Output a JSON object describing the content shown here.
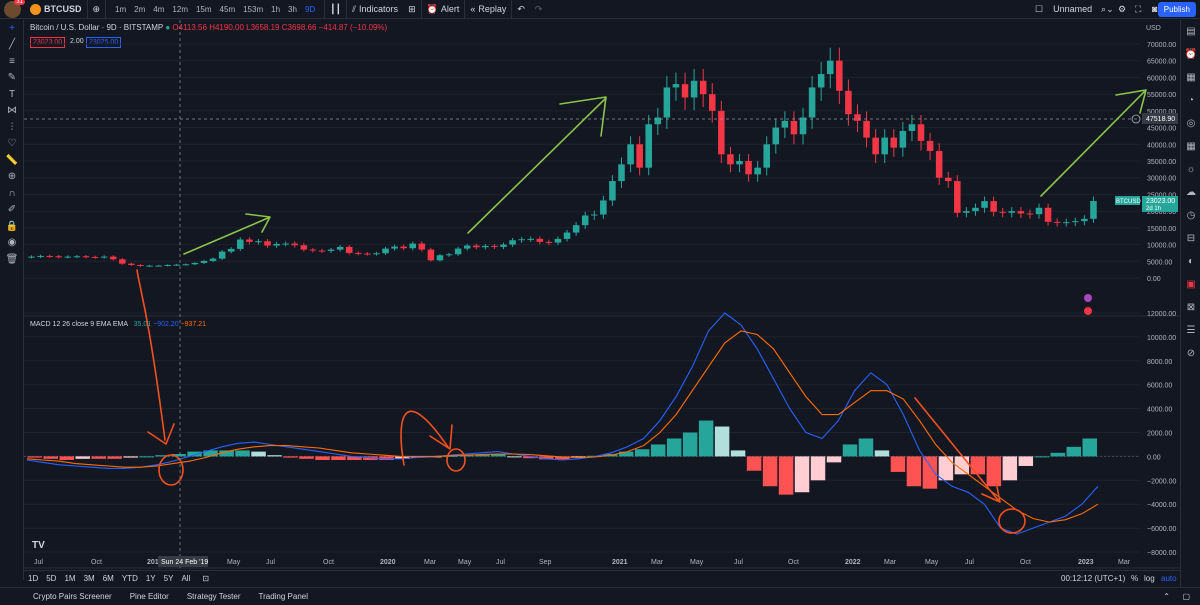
{
  "topbar": {
    "notif_count": "31",
    "symbol": "BTCUSD",
    "timeframes": [
      "1m",
      "2m",
      "4m",
      "12m",
      "15m",
      "45m",
      "153m",
      "1h",
      "3h",
      "9D"
    ],
    "active_timeframe": "9D",
    "indicators_label": "Indicators",
    "alert_label": "Alert",
    "replay_label": "Replay",
    "layout_name": "Unnamed",
    "publish_label": "Publish"
  },
  "legend": {
    "title": "Bitcoin / U.S. Dollar · 9D · BITSTAMP",
    "ohlc": "O",
    "o": "4113.56",
    "h_label": "H",
    "h": "4190.00",
    "l_label": "L",
    "l": "3658.19",
    "c_label": "C",
    "c": "3698.66",
    "chg": "−414.87 (−10.09%)",
    "bid": "23023.00",
    "spread": "2.00",
    "ask": "23025.00"
  },
  "price_axis": {
    "currency": "USD",
    "ticks": [
      "70000.00",
      "65000.00",
      "60000.00",
      "55000.00",
      "50000.00",
      "45000.00",
      "40000.00",
      "35000.00",
      "30000.00",
      "25000.00",
      "20000.00",
      "15000.00",
      "10000.00",
      "5000.00",
      "0.00"
    ],
    "crosshair_label": "47518.90",
    "last_symbol": "BTCUSD",
    "last_price": "23023.00",
    "countdown": "2d 1h"
  },
  "macd": {
    "legend": "MACD 12 26 close 9 EMA EMA",
    "hist": "35.01",
    "macd_val": "−902.20",
    "signal_val": "−937.21",
    "ticks": [
      "12000.00",
      "10000.00",
      "8000.00",
      "6000.00",
      "4000.00",
      "2000.00",
      "0.00",
      "−2000.00",
      "−4000.00",
      "−6000.00",
      "−8000.00"
    ]
  },
  "time_axis": {
    "ticks": [
      "Jul",
      "Oct",
      "2019",
      "May",
      "Jul",
      "Oct",
      "2020",
      "Mar",
      "May",
      "Jul",
      "Sep",
      "2021",
      "Mar",
      "May",
      "Jul",
      "Oct",
      "2022",
      "Mar",
      "May",
      "Jul",
      "Oct",
      "2023",
      "Mar"
    ],
    "crosshair_date": "Sun 24 Feb '19"
  },
  "bottombar": {
    "ranges": [
      "1D",
      "5D",
      "1M",
      "3M",
      "6M",
      "YTD",
      "1Y",
      "5Y",
      "All"
    ],
    "clock": "00:12:12 (UTC+1)",
    "pct": "%",
    "log": "log",
    "auto": "auto"
  },
  "footer": {
    "tabs": [
      "Crypto Pairs Screener",
      "Pine Editor",
      "Strategy Tester",
      "Trading Panel"
    ]
  },
  "colors": {
    "up": "#26a69a",
    "down": "#f23645",
    "macd_line": "#2962ff",
    "signal_line": "#ff6d00",
    "annotation_green": "#8bc34a",
    "annotation_red": "#f4511e",
    "background": "#131722"
  },
  "chart_data": [
    {
      "type": "candlestick",
      "title": "Bitcoin / U.S. Dollar · 9D · BITSTAMP",
      "ylim": [
        0,
        72000
      ],
      "close_series": [
        6400,
        6600,
        6500,
        6300,
        6400,
        6500,
        6300,
        6200,
        6400,
        5600,
        4300,
        3900,
        3600,
        3700,
        3700,
        3900,
        4000,
        4100,
        4500,
        5100,
        5800,
        7900,
        8700,
        11500,
        10800,
        11000,
        9700,
        10200,
        10300,
        9800,
        8500,
        8200,
        8100,
        8500,
        9300,
        7500,
        7300,
        7200,
        7400,
        8800,
        9400,
        8900,
        10300,
        8500,
        5300,
        6800,
        7100,
        8800,
        9700,
        9200,
        9600,
        9300,
        10000,
        11300,
        11600,
        11700,
        10800,
        10600,
        11700,
        13600,
        15800,
        18700,
        19000,
        23200,
        29000,
        34000,
        40000,
        33000,
        46000,
        48000,
        57000,
        58000,
        54000,
        59000,
        55000,
        50000,
        37000,
        34000,
        35000,
        31000,
        33000,
        40000,
        45000,
        47000,
        43000,
        48000,
        57000,
        61000,
        65000,
        56000,
        49000,
        47000,
        42000,
        37000,
        42000,
        39000,
        44000,
        46000,
        41000,
        38000,
        30000,
        29000,
        19500,
        20000,
        21000,
        23000,
        19800,
        19500,
        20000,
        19300,
        19100,
        21000,
        16800,
        16600,
        16700,
        17000,
        17700,
        23023
      ],
      "last": 23023
    },
    {
      "type": "macd",
      "params": "12 26 close 9 EMA EMA",
      "ylim": [
        -8000,
        12000
      ],
      "macd_series": [
        -300,
        -500,
        -700,
        -800,
        -900,
        -1000,
        -1000,
        -900,
        -700,
        -400,
        0,
        400,
        800,
        1100,
        1200,
        1000,
        800,
        600,
        400,
        200,
        0,
        -100,
        -200,
        -200,
        -100,
        -50,
        100,
        200,
        300,
        400,
        200,
        0,
        -200,
        -300,
        -200,
        0,
        300,
        800,
        1500,
        3000,
        5000,
        7500,
        10500,
        12000,
        11000,
        9000,
        6500,
        4000,
        2000,
        1500,
        3000,
        5500,
        7000,
        6000,
        3500,
        500,
        -1500,
        -2500,
        -3000,
        -4000,
        -6000,
        -6500,
        -6000,
        -5500,
        -5000,
        -4000,
        -2500
      ],
      "signal_series": [
        -200,
        -300,
        -400,
        -600,
        -700,
        -800,
        -900,
        -900,
        -800,
        -600,
        -400,
        -100,
        300,
        600,
        800,
        900,
        900,
        800,
        700,
        500,
        300,
        200,
        100,
        0,
        0,
        0,
        50,
        100,
        150,
        200,
        200,
        150,
        50,
        -50,
        -100,
        -50,
        100,
        400,
        900,
        2000,
        3500,
        5500,
        7500,
        9500,
        10500,
        10200,
        9000,
        7000,
        5000,
        3500,
        3500,
        4500,
        5500,
        5500,
        4800,
        3000,
        1000,
        -500,
        -1500,
        -2500,
        -3500,
        -4500,
        -5200,
        -5500,
        -5300,
        -4800,
        -4000
      ],
      "histogram": [
        -100,
        -200,
        -300,
        -200,
        -200,
        -200,
        -100,
        0,
        100,
        200,
        400,
        500,
        500,
        500,
        400,
        100,
        -100,
        -200,
        -300,
        -300,
        -300,
        -300,
        -300,
        -200,
        -100,
        -50,
        50,
        100,
        150,
        200,
        0,
        -150,
        -250,
        -250,
        -100,
        50,
        200,
        400,
        600,
        1000,
        1500,
        2000,
        3000,
        2500,
        500,
        -1200,
        -2500,
        -3200,
        -3000,
        -2000,
        -500,
        1000,
        1500,
        500,
        -1300,
        -2500,
        -2700,
        -2000,
        -1500,
        -1500,
        -2500,
        -2000,
        -800,
        0,
        300,
        800,
        1500
      ]
    }
  ]
}
